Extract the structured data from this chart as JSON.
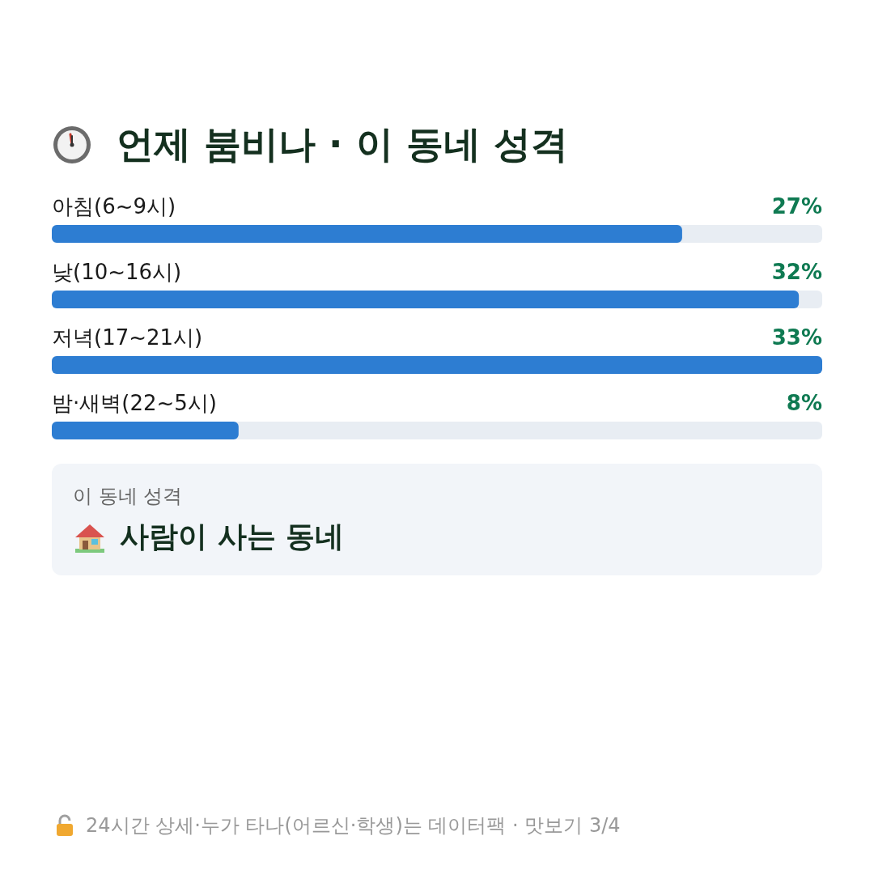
{
  "chart_data": {
    "type": "bar",
    "orientation": "horizontal",
    "title": "언제 붐비나 · 이 동네 성격",
    "categories": [
      "아침(6~9시)",
      "낮(10~16시)",
      "저녁(17~21시)",
      "밤·새벽(22~5시)"
    ],
    "values": [
      27,
      32,
      33,
      8
    ],
    "value_labels": [
      "27%",
      "32%",
      "33%",
      "8%"
    ],
    "color": "#2d7dd2",
    "annotations": [
      "이 동네 성격",
      "사람이 사는 동네",
      "24시간 상세·누가 타나(어르신·학생)는 데이터팩 · 맛보기 3/4"
    ]
  }
}
